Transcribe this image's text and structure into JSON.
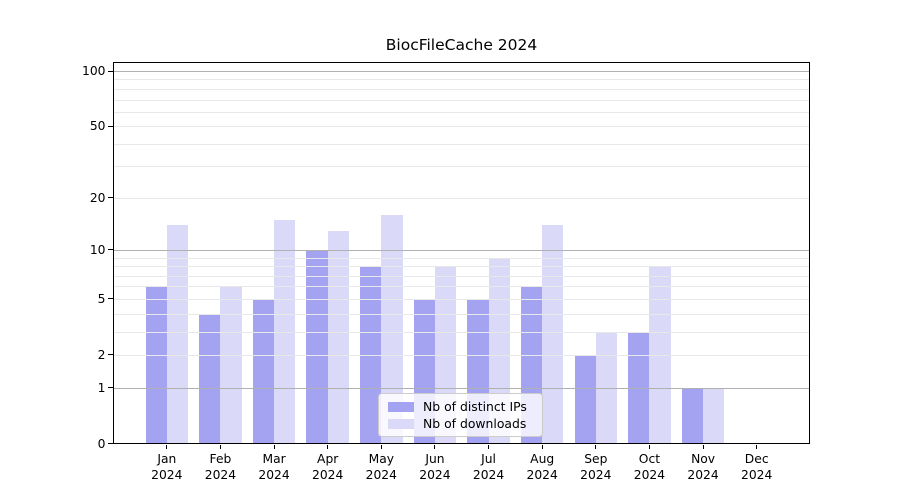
{
  "chart_data": {
    "type": "bar",
    "title": "BiocFileCache 2024",
    "categories": [
      "Jan",
      "Feb",
      "Mar",
      "Apr",
      "May",
      "Jun",
      "Jul",
      "Aug",
      "Sep",
      "Oct",
      "Nov",
      "Dec"
    ],
    "category_year": "2024",
    "series": [
      {
        "name": "Nb of distinct IPs",
        "color": "#a3a3f2",
        "values": [
          6,
          4,
          5,
          10,
          8,
          5,
          5,
          6,
          2,
          3,
          1,
          0
        ]
      },
      {
        "name": "Nb of downloads",
        "color": "#dadaf8",
        "values": [
          14,
          6,
          15,
          13,
          16,
          8,
          9,
          14,
          3,
          8,
          1,
          0
        ]
      }
    ],
    "yscale": "log1p",
    "ylim": [
      0,
      100
    ],
    "yticks": [
      0,
      1,
      2,
      5,
      10,
      20,
      50,
      100
    ],
    "ytick_labels": [
      "0",
      "1",
      "2",
      "5",
      "10",
      "20",
      "50",
      "100"
    ],
    "y_major_gridlines": [
      1,
      10,
      100
    ],
    "y_minor_gridlines": [
      2,
      3,
      4,
      5,
      6,
      7,
      8,
      9,
      20,
      30,
      40,
      50,
      60,
      70,
      80,
      90
    ],
    "grid": true,
    "xlabel": "",
    "ylabel": "",
    "legend_position": "lower center"
  },
  "colors": {
    "background": "#ffffff",
    "axis": "#000000",
    "text": "#000000",
    "grid_major": "#b0b0b0",
    "grid_minor": "#e8e8e8",
    "series_dark": "#a3a3f2",
    "series_light": "#dadaf8"
  }
}
